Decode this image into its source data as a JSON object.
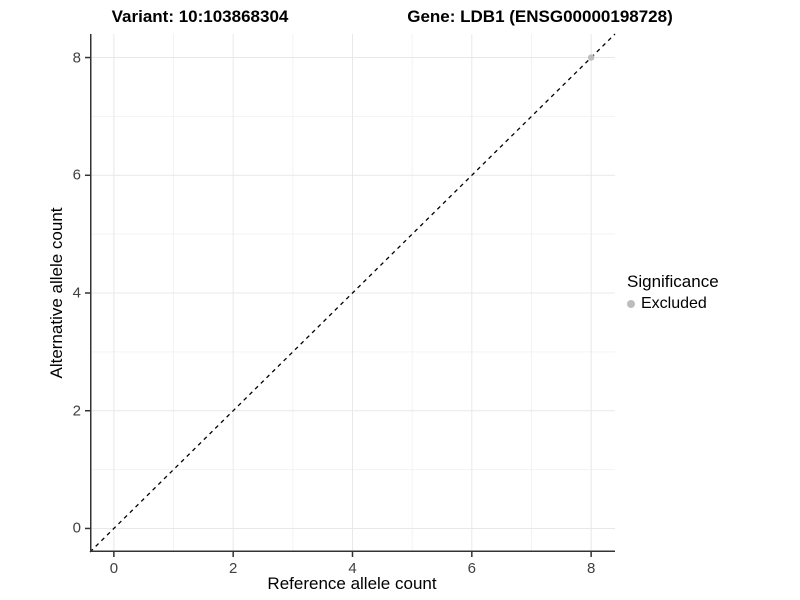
{
  "header": {
    "variant_title": "Variant: 10:103868304",
    "gene_title": "Gene: LDB1 (ENSG00000198728)"
  },
  "legend": {
    "title": "Significance",
    "items": [
      {
        "label": "Excluded",
        "color": "#bdbdbd"
      }
    ]
  },
  "colors": {
    "grid_major": "#e8e8e8",
    "grid_minor": "#f3f3f3",
    "axis_line": "#333333",
    "tick_mark": "#333333",
    "tick_text": "#404040",
    "identity_line": "#000000",
    "panel_background": "#ffffff"
  },
  "chart_data": {
    "type": "scatter",
    "title": "Variant: 10:103868304 | Gene: LDB1 (ENSG00000198728)",
    "xlabel": "Reference allele count",
    "ylabel": "Alternative allele count",
    "xlim": [
      -0.4,
      8.4
    ],
    "ylim": [
      -0.4,
      8.4
    ],
    "xticks": [
      0,
      2,
      4,
      6,
      8
    ],
    "yticks": [
      0,
      2,
      4,
      6,
      8
    ],
    "grid": "on",
    "legend_position": "right",
    "legend_title": "Significance",
    "reference_line": {
      "kind": "identity y=x",
      "style": "dashed",
      "color": "#000000",
      "span": "full-panel corner to corner"
    },
    "series": [
      {
        "name": "Excluded",
        "color": "#bdbdbd",
        "points": [
          [
            8,
            8
          ]
        ]
      }
    ]
  }
}
